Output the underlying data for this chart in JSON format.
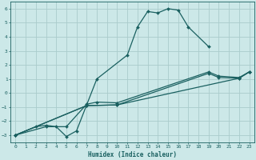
{
  "xlabel": "Humidex (Indice chaleur)",
  "background_color": "#cce8e8",
  "grid_color": "#aacccc",
  "line_color": "#1a6060",
  "xlim": [
    -0.5,
    23.5
  ],
  "ylim": [
    -3.5,
    6.5
  ],
  "xticks": [
    0,
    1,
    2,
    3,
    4,
    5,
    6,
    7,
    8,
    9,
    10,
    11,
    12,
    13,
    14,
    15,
    16,
    17,
    18,
    19,
    20,
    21,
    22,
    23
  ],
  "yticks": [
    -3,
    -2,
    -1,
    0,
    1,
    2,
    3,
    4,
    5,
    6
  ],
  "line1_x": [
    0,
    2,
    3,
    4,
    5,
    6,
    8,
    11,
    12,
    13,
    14,
    15,
    16,
    17,
    19
  ],
  "line1_y": [
    -3.0,
    -2.4,
    -2.3,
    -2.4,
    -3.1,
    -2.7,
    1.0,
    2.7,
    4.7,
    5.8,
    5.7,
    6.0,
    5.9,
    4.7,
    3.3
  ],
  "line2_x": [
    0,
    3,
    5,
    7,
    8,
    10,
    19,
    20,
    22,
    23
  ],
  "line2_y": [
    -3.0,
    -2.4,
    -2.4,
    -0.8,
    -0.65,
    -0.7,
    1.5,
    1.2,
    1.1,
    1.5
  ],
  "line3_x": [
    0,
    7,
    10,
    19,
    20,
    22,
    23
  ],
  "line3_y": [
    -3.0,
    -0.9,
    -0.85,
    1.4,
    1.1,
    1.05,
    1.5
  ],
  "line4_x": [
    0,
    7,
    10,
    22,
    23
  ],
  "line4_y": [
    -3.0,
    -0.9,
    -0.85,
    1.05,
    1.5
  ]
}
